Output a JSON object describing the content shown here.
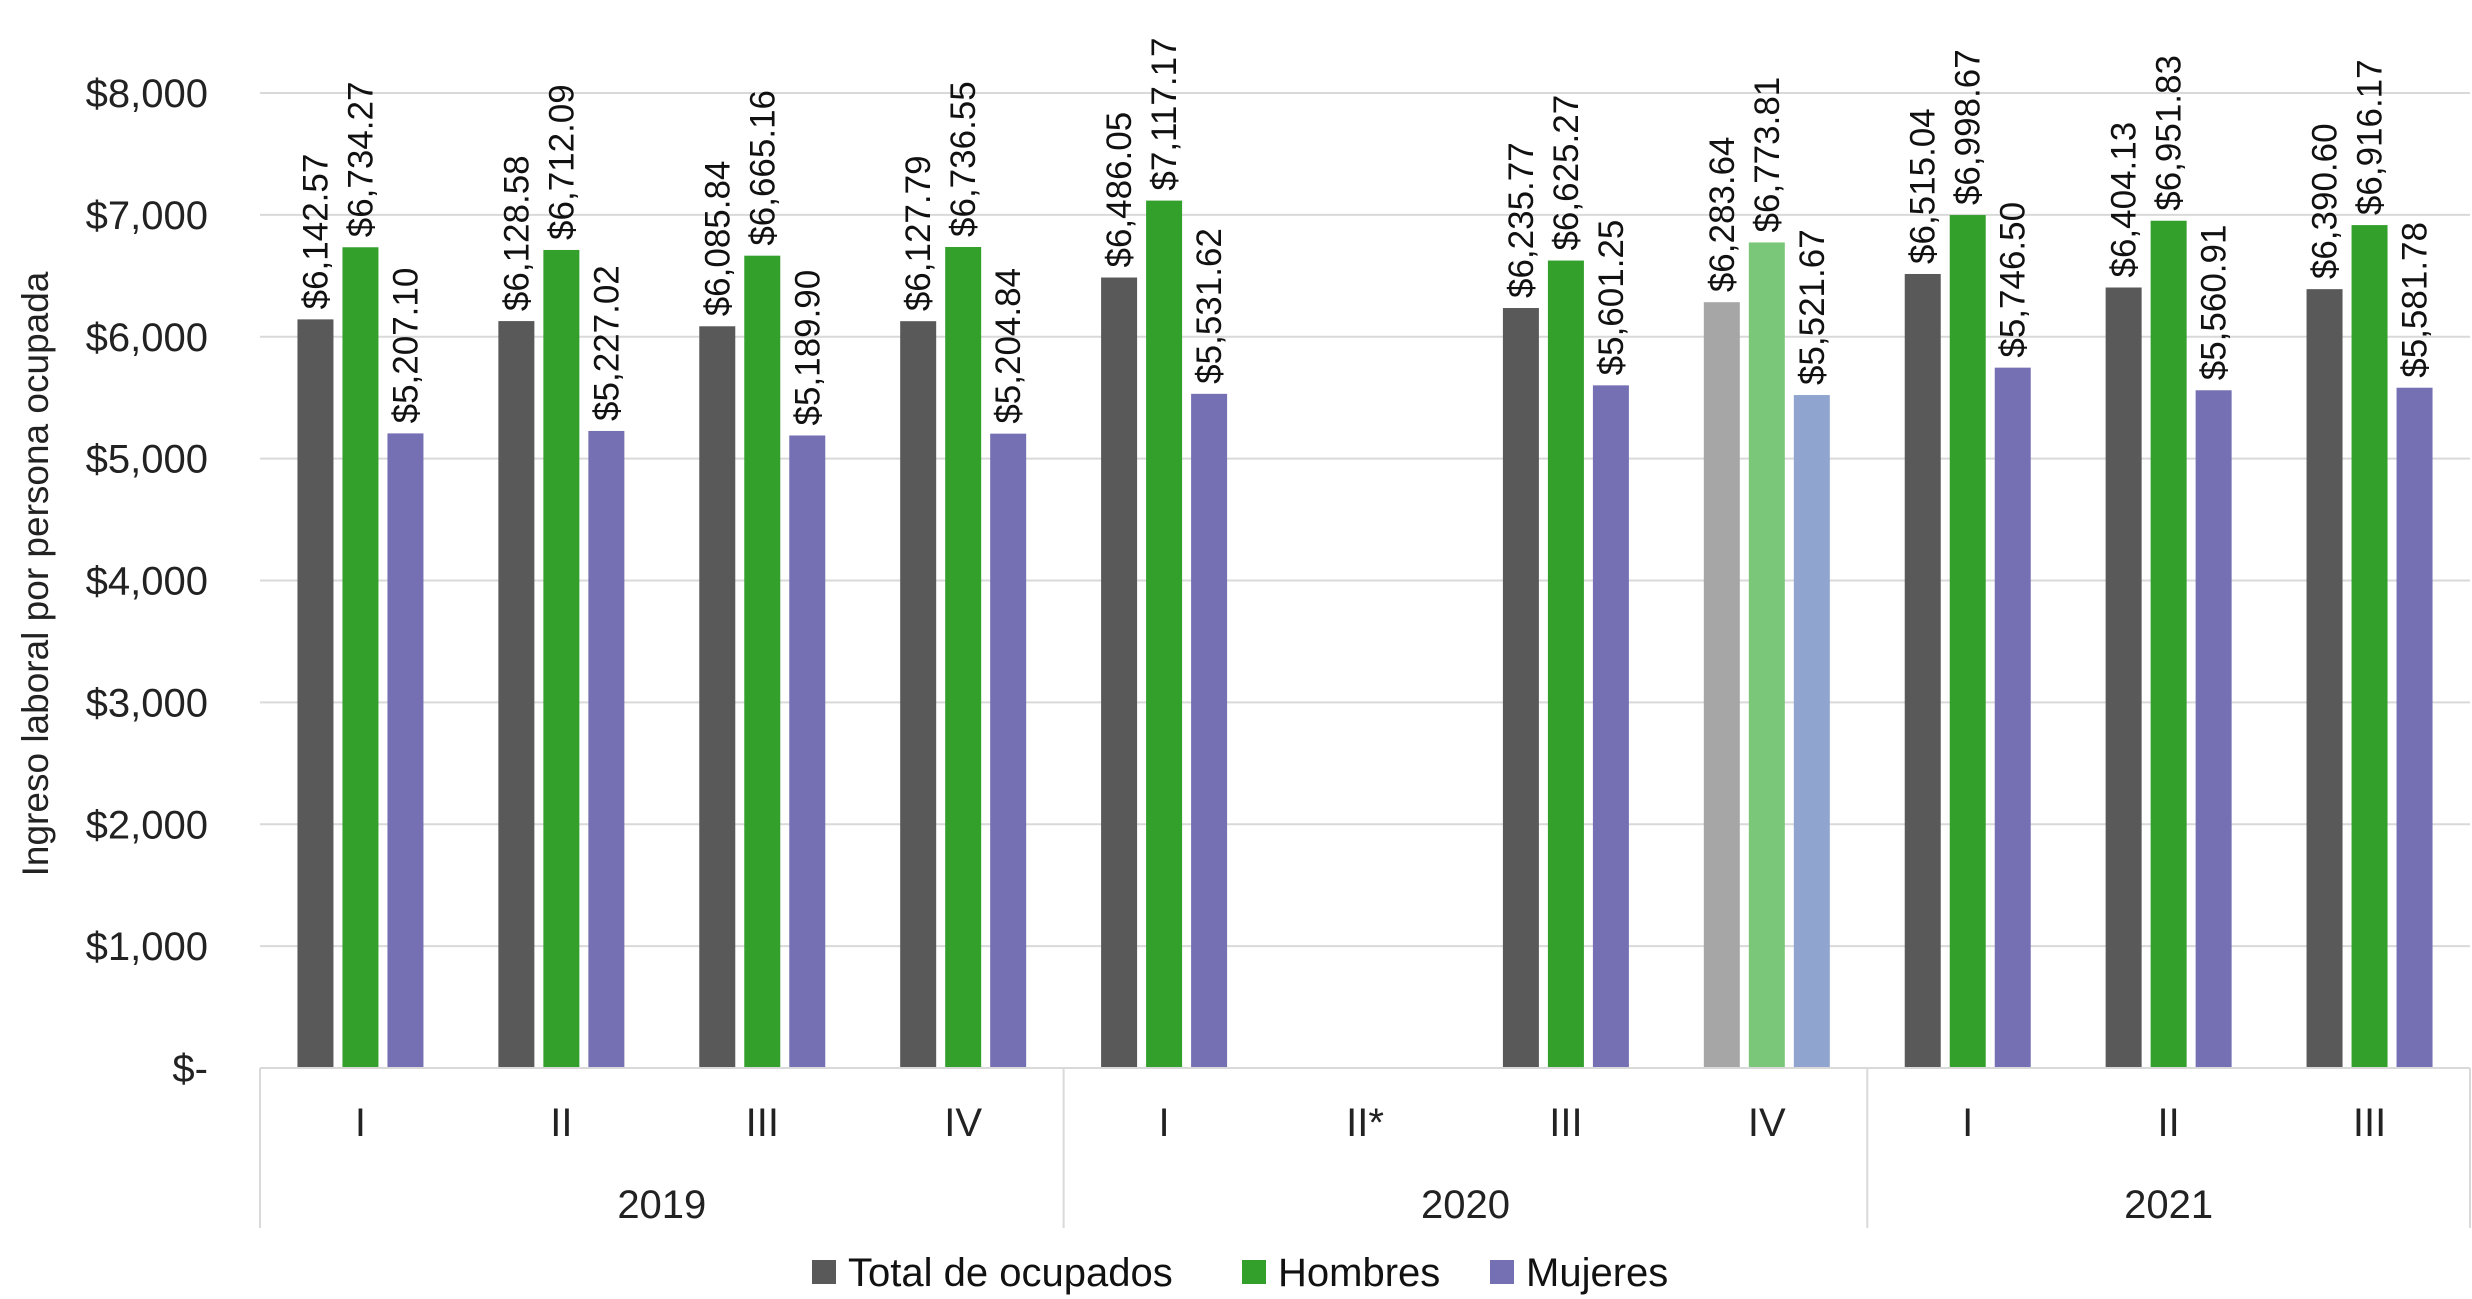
{
  "chart_data": {
    "type": "bar",
    "ylabel": "Ingreso laboral por persona ocupada",
    "ylim": [
      0,
      8000
    ],
    "ytick_step": 1000,
    "ytick_labels": [
      "$-",
      "$1,000",
      "$2,000",
      "$3,000",
      "$4,000",
      "$5,000",
      "$6,000",
      "$7,000",
      "$8,000"
    ],
    "grid": true,
    "legend_position": "bottom",
    "groups": [
      {
        "year": "2019",
        "quarters": [
          "I",
          "II",
          "III",
          "IV"
        ]
      },
      {
        "year": "2020",
        "quarters": [
          "I",
          "II*",
          "III",
          "IV"
        ]
      },
      {
        "year": "2021",
        "quarters": [
          "I",
          "II",
          "III"
        ]
      }
    ],
    "categories": [
      "2019 I",
      "2019 II",
      "2019 III",
      "2019 IV",
      "2020 I",
      "2020 II*",
      "2020 III",
      "2020 IV",
      "2021 I",
      "2021 II",
      "2021 III"
    ],
    "series": [
      {
        "name": "Total de ocupados",
        "color": "#595959",
        "highlight_color": "#a6a6a6",
        "values": [
          6142.57,
          6128.58,
          6085.84,
          6127.79,
          6486.05,
          null,
          6235.77,
          6283.64,
          6515.04,
          6404.13,
          6390.6
        ],
        "labels": [
          "$6,142.57",
          "$6,128.58",
          "$6,085.84",
          "$6,127.79",
          "$6,486.05",
          "",
          "$6,235.77",
          "$6,283.64",
          "$6,515.04",
          "$6,404.13",
          "$6,390.60"
        ]
      },
      {
        "name": "Hombres",
        "color": "#33a02c",
        "highlight_color": "#7bc77a",
        "values": [
          6734.27,
          6712.09,
          6665.16,
          6736.55,
          7117.17,
          null,
          6625.27,
          6773.81,
          6998.67,
          6951.83,
          6916.17
        ],
        "labels": [
          "$6,734.27",
          "$6,712.09",
          "$6,665.16",
          "$6,736.55",
          "$7,117.17",
          "",
          "$6,625.27",
          "$6,773.81",
          "$6,998.67",
          "$6,951.83",
          "$6,916.17"
        ]
      },
      {
        "name": "Mujeres",
        "color": "#7570b3",
        "highlight_color": "#8fa5cf",
        "values": [
          5207.1,
          5227.02,
          5189.9,
          5204.84,
          5531.62,
          null,
          5601.25,
          5521.67,
          5746.5,
          5560.91,
          5581.78
        ],
        "labels": [
          "$5,207.10",
          "$5,227.02",
          "$5,189.90",
          "$5,204.84",
          "$5,531.62",
          "",
          "$5,601.25",
          "$5,521.67",
          "$5,746.50",
          "$5,560.91",
          "$5,581.78"
        ]
      }
    ],
    "highlighted_category_index": 7
  }
}
